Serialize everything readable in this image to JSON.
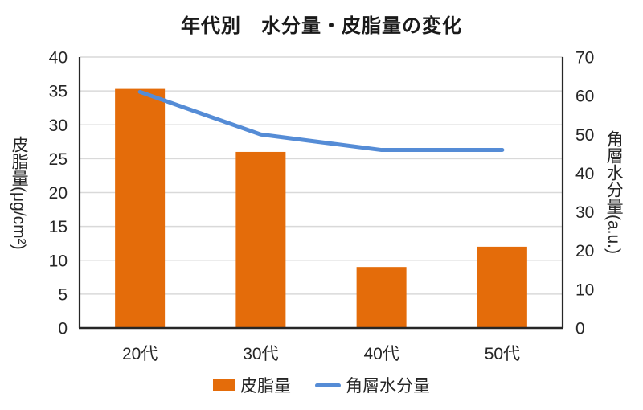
{
  "chart_data": {
    "type": "combo-bar-line",
    "title": "年代別　水分量・皮脂量の変化",
    "categories": [
      "20代",
      "30代",
      "40代",
      "50代"
    ],
    "series": [
      {
        "name": "皮脂量",
        "type": "bar",
        "axis": "left",
        "color": "#E46C0A",
        "values": [
          35.3,
          26,
          9,
          12
        ]
      },
      {
        "name": "角層水分量",
        "type": "line",
        "axis": "right",
        "color": "#558CD6",
        "values": [
          61,
          50,
          46,
          46
        ]
      }
    ],
    "left_axis": {
      "title": "皮脂量(μg/cm²)",
      "min": 0,
      "max": 40,
      "step": 5,
      "ticks": [
        0,
        5,
        10,
        15,
        20,
        25,
        30,
        35,
        40
      ]
    },
    "right_axis": {
      "title": "角層水分量(a.u.)",
      "min": 0,
      "max": 70,
      "step": 10,
      "ticks": [
        0,
        10,
        20,
        30,
        40,
        50,
        60,
        70
      ]
    },
    "grid": true,
    "legend_position": "bottom",
    "colors": {
      "grid": "#D9D9D9",
      "axis": "#262626",
      "text": "#262626",
      "title": "#1a1a1a"
    }
  }
}
